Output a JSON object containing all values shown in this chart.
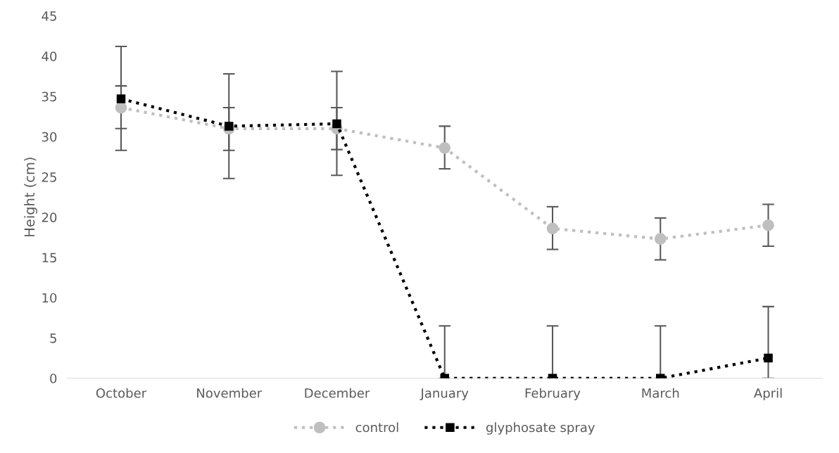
{
  "chart_data": {
    "type": "line",
    "ylabel": "Height (cm)",
    "categories": [
      "October",
      "November",
      "December",
      "January",
      "February",
      "March",
      "April"
    ],
    "ylim": [
      0,
      45
    ],
    "yticks": [
      0,
      5,
      10,
      15,
      20,
      25,
      30,
      35,
      40,
      45
    ],
    "grid": false,
    "legend": "bottom",
    "line_style": "dotted",
    "series": [
      {
        "name": "control",
        "color": "#bfbfbf",
        "marker": "circle",
        "values": [
          33.6,
          31.0,
          31.0,
          28.6,
          18.6,
          17.3,
          19.0
        ],
        "errors": [
          [
            31.0,
            36.3
          ],
          [
            28.3,
            33.6
          ],
          [
            28.4,
            33.6
          ],
          [
            26.0,
            31.3
          ],
          [
            16.0,
            21.3
          ],
          [
            14.7,
            19.9
          ],
          [
            16.4,
            21.6
          ]
        ]
      },
      {
        "name": "glyphosate spray",
        "color": "#000000",
        "marker": "square",
        "values": [
          34.7,
          31.3,
          31.6,
          0,
          0,
          0,
          2.5
        ],
        "errors": [
          [
            28.3,
            41.2
          ],
          [
            24.8,
            37.8
          ],
          [
            25.2,
            38.1
          ],
          [
            0,
            6.5
          ],
          [
            0,
            6.5
          ],
          [
            0,
            6.5
          ],
          [
            0,
            8.9
          ]
        ]
      }
    ]
  }
}
